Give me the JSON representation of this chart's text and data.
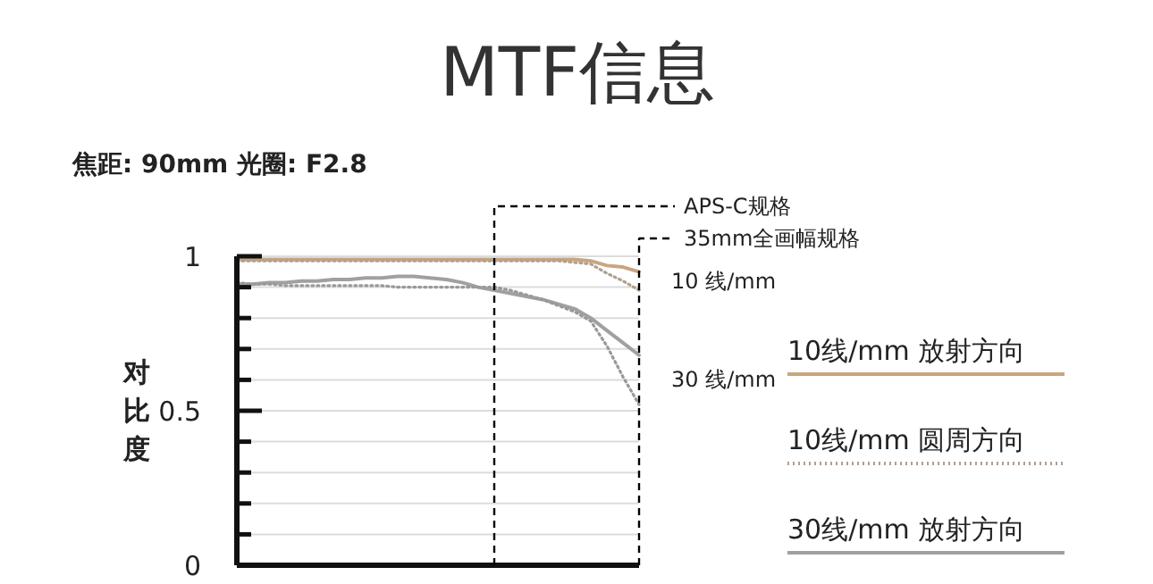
{
  "chart_data": {
    "type": "line",
    "title": "MTF信息",
    "subtitle": "焦距: 90mm 光圈: F2.8",
    "ylabel": "对比度",
    "categories": [
      null,
      null,
      null,
      null,
      null,
      null,
      null,
      null,
      null,
      null,
      null,
      null,
      null,
      null,
      null,
      null,
      null,
      null,
      null,
      null,
      null,
      null,
      null,
      null,
      null,
      null
    ],
    "ylim": [
      0,
      1
    ],
    "yticks": [
      0,
      {
        "value": 0.1,
        "label": null
      },
      {
        "value": 0.2,
        "label": null
      },
      {
        "value": 0.3,
        "label": null
      },
      {
        "value": 0.4,
        "label": null
      },
      0.5,
      {
        "value": 0.6,
        "label": null
      },
      {
        "value": 0.7,
        "label": null
      },
      {
        "value": 0.8,
        "label": null
      },
      {
        "value": 0.9,
        "label": null
      },
      1
    ],
    "grid": "y",
    "legend": "right",
    "series": [
      {
        "name": "10线/mm 放射方向",
        "color": "#c9a57e",
        "line_style": "solid",
        "values": [
          0.99,
          0.99,
          0.99,
          0.99,
          0.99,
          0.99,
          0.99,
          0.99,
          0.99,
          0.99,
          0.99,
          0.99,
          0.99,
          0.99,
          0.99,
          0.99,
          0.99,
          0.99,
          0.99,
          0.99,
          0.99,
          0.99,
          0.985,
          0.97,
          0.965,
          0.95
        ]
      },
      {
        "name": "10线/mm 圆周方向",
        "color": "#b0a090",
        "line_style": "dotted",
        "values": [
          0.985,
          0.985,
          0.985,
          0.985,
          0.985,
          0.985,
          0.985,
          0.985,
          0.985,
          0.985,
          0.985,
          0.985,
          0.985,
          0.985,
          0.985,
          0.985,
          0.985,
          0.985,
          0.985,
          0.985,
          0.985,
          0.98,
          0.975,
          0.945,
          0.92,
          0.89
        ]
      },
      {
        "name": "30线/mm 放射方向",
        "color": "#a0a0a0",
        "line_style": "solid",
        "values": [
          0.91,
          0.91,
          0.915,
          0.915,
          0.92,
          0.92,
          0.925,
          0.925,
          0.93,
          0.93,
          0.935,
          0.935,
          0.93,
          0.925,
          0.915,
          0.9,
          0.89,
          0.88,
          0.87,
          0.86,
          0.845,
          0.83,
          0.8,
          0.76,
          0.72,
          0.68
        ]
      },
      {
        "color": "#999999",
        "line_style": "dotted",
        "values": [
          0.915,
          0.91,
          0.91,
          0.905,
          0.905,
          0.905,
          0.905,
          0.905,
          0.905,
          0.905,
          0.9,
          0.9,
          0.9,
          0.9,
          0.9,
          0.9,
          0.9,
          0.89,
          0.875,
          0.86,
          0.84,
          0.82,
          0.79,
          0.71,
          0.61,
          0.52
        ]
      }
    ],
    "annotations": [
      "APS-C规格",
      "35mm全画幅规格",
      "10 线/mm",
      "30 线/mm"
    ]
  }
}
